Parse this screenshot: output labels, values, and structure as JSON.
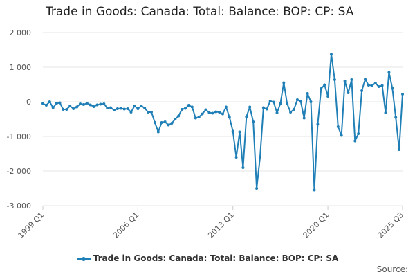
{
  "chart_data": {
    "type": "line",
    "title": "Trade in Goods: Canada: Total: Balance: BOP: CP: SA",
    "xlabel": "",
    "ylabel": "",
    "x_start": "1999 Q1",
    "x_end": "2025 Q3",
    "x_tick_labels": [
      "1999 Q1",
      "2006 Q1",
      "2013 Q1",
      "2020 Q1",
      "2025 Q3"
    ],
    "y_tick_labels": [
      "2 000",
      "1 000",
      "0",
      "-1 000",
      "-2 000",
      "-3 000"
    ],
    "ylim": [
      -3000,
      2000
    ],
    "grid": true,
    "legend_position": "bottom",
    "color": "#1f7fb6",
    "series": [
      {
        "name": "Trade in Goods: Canada: Total: Balance: BOP: CP: SA",
        "values": [
          -50,
          -100,
          0,
          -170,
          -50,
          -30,
          -220,
          -220,
          -120,
          -200,
          -150,
          -60,
          -80,
          -40,
          -90,
          -140,
          -90,
          -70,
          -60,
          -180,
          -170,
          -240,
          -200,
          -190,
          -210,
          -200,
          -300,
          -120,
          -200,
          -120,
          -180,
          -300,
          -300,
          -600,
          -870,
          -600,
          -580,
          -670,
          -620,
          -500,
          -410,
          -220,
          -190,
          -100,
          -150,
          -470,
          -440,
          -350,
          -230,
          -310,
          -330,
          -290,
          -300,
          -350,
          -150,
          -450,
          -850,
          -1600,
          -870,
          -1900,
          -430,
          -150,
          -580,
          -2500,
          -1600,
          -170,
          -210,
          20,
          -10,
          -320,
          -50,
          550,
          -60,
          -300,
          -220,
          60,
          10,
          -470,
          240,
          0,
          -2550,
          -650,
          380,
          490,
          160,
          1370,
          640,
          -720,
          -970,
          600,
          260,
          640,
          -1130,
          -920,
          320,
          650,
          480,
          470,
          540,
          440,
          470,
          -320,
          850,
          390,
          -450,
          -1380,
          220
        ]
      }
    ]
  },
  "legend": {
    "label": "Trade in Goods: Canada: Total: Balance: BOP: CP: SA"
  },
  "source": {
    "label": "Source:"
  }
}
